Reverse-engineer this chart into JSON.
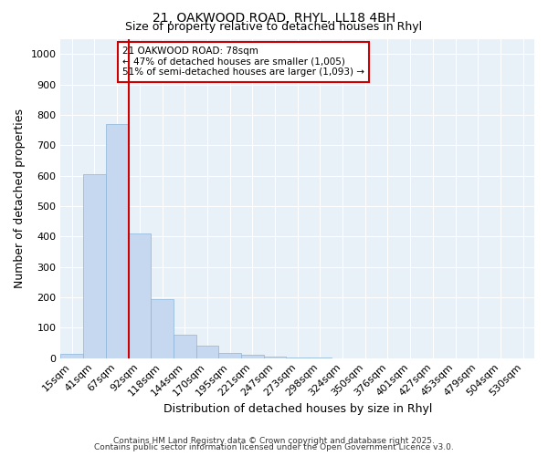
{
  "title1": "21, OAKWOOD ROAD, RHYL, LL18 4BH",
  "title2": "Size of property relative to detached houses in Rhyl",
  "xlabel": "Distribution of detached houses by size in Rhyl",
  "ylabel": "Number of detached properties",
  "bar_color": "#c5d8f0",
  "bar_edge_color": "#8ab4d8",
  "background_color": "#e8f0f8",
  "grid_color": "#ffffff",
  "fig_color": "#ffffff",
  "vline_color": "#cc0000",
  "vline_x": 2.5,
  "annotation_text": "21 OAKWOOD ROAD: 78sqm\n← 47% of detached houses are smaller (1,005)\n51% of semi-detached houses are larger (1,093) →",
  "annotation_box_color": "#ffffff",
  "annotation_box_edge": "#cc0000",
  "categories": [
    "15sqm",
    "41sqm",
    "67sqm",
    "92sqm",
    "118sqm",
    "144sqm",
    "170sqm",
    "195sqm",
    "221sqm",
    "247sqm",
    "273sqm",
    "298sqm",
    "324sqm",
    "350sqm",
    "376sqm",
    "401sqm",
    "427sqm",
    "453sqm",
    "479sqm",
    "504sqm",
    "530sqm"
  ],
  "values": [
    15,
    605,
    770,
    410,
    195,
    78,
    40,
    18,
    10,
    5,
    3,
    1,
    0,
    0,
    0,
    0,
    0,
    0,
    0,
    0,
    0
  ],
  "ylim": [
    0,
    1050
  ],
  "yticks": [
    0,
    100,
    200,
    300,
    400,
    500,
    600,
    700,
    800,
    900,
    1000
  ],
  "title_fontsize": 10,
  "subtitle_fontsize": 9,
  "axis_label_fontsize": 9,
  "tick_fontsize": 8,
  "footnote1": "Contains HM Land Registry data © Crown copyright and database right 2025.",
  "footnote2": "Contains public sector information licensed under the Open Government Licence v3.0."
}
